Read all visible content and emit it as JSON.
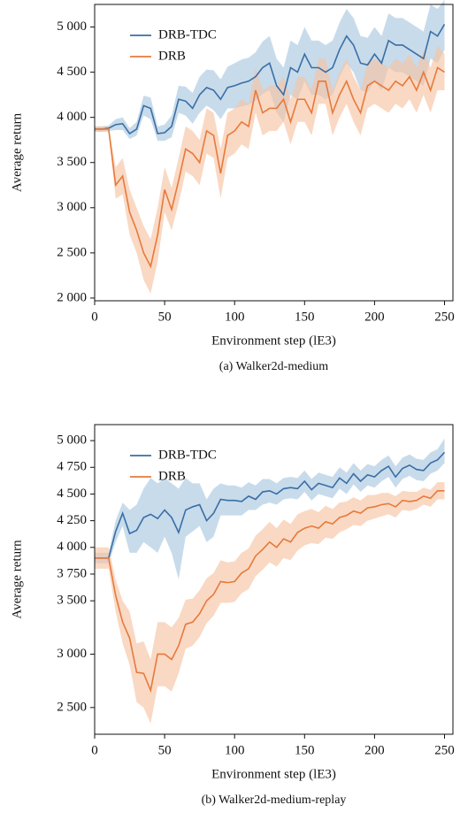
{
  "chart_data": [
    {
      "type": "line",
      "caption": "(a) Walker2d-medium",
      "xlabel": "Environment step (lE3)",
      "ylabel": "Average return",
      "legend": "upper left",
      "x": [
        0,
        5,
        10,
        15,
        20,
        25,
        30,
        35,
        40,
        45,
        50,
        55,
        60,
        65,
        70,
        75,
        80,
        85,
        90,
        95,
        100,
        105,
        110,
        115,
        120,
        125,
        130,
        135,
        140,
        145,
        150,
        155,
        160,
        165,
        170,
        175,
        180,
        185,
        190,
        195,
        200,
        205,
        210,
        215,
        220,
        225,
        230,
        235,
        240,
        245,
        250
      ],
      "xlim": [
        0,
        256
      ],
      "xticks": [
        0,
        50,
        100,
        150,
        200,
        250
      ],
      "ylim": [
        1970,
        5250
      ],
      "yticks": [
        {
          "value": 2000,
          "label": "2 000"
        },
        {
          "value": 2500,
          "label": "2 500"
        },
        {
          "value": 3000,
          "label": "3 000"
        },
        {
          "value": 3500,
          "label": "3 500"
        },
        {
          "value": 4000,
          "label": "4 000"
        },
        {
          "value": 4500,
          "label": "4 500"
        },
        {
          "value": 5000,
          "label": "5 000"
        }
      ],
      "series": [
        {
          "name": "DRB-TDC",
          "color": "#3a6ea5",
          "band_color": "#a9c8e0",
          "values": [
            3870,
            3870,
            3880,
            3920,
            3930,
            3820,
            3870,
            4130,
            4100,
            3820,
            3830,
            3900,
            4200,
            4180,
            4100,
            4250,
            4330,
            4300,
            4200,
            4330,
            4350,
            4380,
            4400,
            4450,
            4550,
            4600,
            4350,
            4250,
            4550,
            4500,
            4700,
            4550,
            4550,
            4500,
            4550,
            4750,
            4900,
            4800,
            4600,
            4580,
            4700,
            4600,
            4850,
            4800,
            4800,
            4750,
            4700,
            4650,
            4950,
            4900,
            5030
          ],
          "lower": [
            3840,
            3840,
            3850,
            3860,
            3860,
            3760,
            3800,
            4020,
            3980,
            3740,
            3740,
            3780,
            4050,
            4020,
            3930,
            4050,
            4130,
            4080,
            3980,
            4100,
            4100,
            4120,
            4140,
            4180,
            4260,
            4300,
            4050,
            3950,
            4250,
            4200,
            4400,
            4250,
            4250,
            4200,
            4250,
            4450,
            4600,
            4500,
            4300,
            4280,
            4400,
            4300,
            4550,
            4500,
            4500,
            4450,
            4400,
            4350,
            4650,
            4600,
            4750
          ],
          "upper": [
            3900,
            3900,
            3910,
            3980,
            4000,
            3880,
            3950,
            4240,
            4220,
            3900,
            3920,
            4020,
            4350,
            4340,
            4270,
            4450,
            4530,
            4520,
            4420,
            4560,
            4600,
            4640,
            4660,
            4720,
            4840,
            4900,
            4650,
            4550,
            4850,
            4800,
            5000,
            4850,
            4850,
            4800,
            4850,
            5050,
            5200,
            5100,
            4900,
            4880,
            5000,
            4900,
            5150,
            5100,
            5100,
            5050,
            5000,
            4950,
            5250,
            5200,
            5300
          ]
        },
        {
          "name": "DRB",
          "color": "#e8793b",
          "band_color": "#f6c4a4",
          "values": [
            3870,
            3870,
            3870,
            3250,
            3350,
            2950,
            2750,
            2500,
            2350,
            2700,
            3200,
            2980,
            3300,
            3650,
            3600,
            3500,
            3850,
            3800,
            3380,
            3800,
            3850,
            3950,
            3900,
            4300,
            4050,
            4100,
            4100,
            4200,
            3950,
            4200,
            4200,
            4050,
            4400,
            4400,
            4050,
            4250,
            4400,
            4200,
            4050,
            4350,
            4400,
            4350,
            4300,
            4400,
            4350,
            4450,
            4300,
            4500,
            4300,
            4550,
            4500
          ],
          "lower": [
            3840,
            3840,
            3840,
            3100,
            3150,
            2700,
            2500,
            2200,
            2050,
            2400,
            2950,
            2750,
            3050,
            3400,
            3350,
            3250,
            3600,
            3550,
            3100,
            3550,
            3600,
            3700,
            3650,
            4050,
            3800,
            3850,
            3850,
            3950,
            3700,
            3950,
            3950,
            3800,
            4150,
            4150,
            3800,
            4000,
            4150,
            3950,
            3800,
            4100,
            4150,
            4100,
            4050,
            4150,
            4100,
            4200,
            4050,
            4250,
            4050,
            4300,
            4300
          ],
          "upper": [
            3900,
            3900,
            3900,
            3450,
            3550,
            3200,
            3000,
            2800,
            2650,
            3000,
            3450,
            3220,
            3550,
            3900,
            3850,
            3750,
            4100,
            4050,
            3650,
            4050,
            4100,
            4200,
            4150,
            4550,
            4300,
            4350,
            4350,
            4450,
            4200,
            4450,
            4450,
            4300,
            4650,
            4650,
            4300,
            4500,
            4650,
            4450,
            4300,
            4600,
            4650,
            4600,
            4550,
            4650,
            4600,
            4700,
            4550,
            4750,
            4550,
            4800,
            4700
          ]
        }
      ]
    },
    {
      "type": "line",
      "caption": "(b) Walker2d-medium-replay",
      "xlabel": "Environment step (lE3)",
      "ylabel": "Average return",
      "legend": "upper left",
      "x": [
        0,
        5,
        10,
        15,
        20,
        25,
        30,
        35,
        40,
        45,
        50,
        55,
        60,
        65,
        70,
        75,
        80,
        85,
        90,
        95,
        100,
        105,
        110,
        115,
        120,
        125,
        130,
        135,
        140,
        145,
        150,
        155,
        160,
        165,
        170,
        175,
        180,
        185,
        190,
        195,
        200,
        205,
        210,
        215,
        220,
        225,
        230,
        235,
        240,
        245,
        250
      ],
      "xlim": [
        0,
        256
      ],
      "xticks": [
        0,
        50,
        100,
        150,
        200,
        250
      ],
      "ylim": [
        2250,
        5150
      ],
      "yticks": [
        {
          "value": 2500,
          "label": "2 500"
        },
        {
          "value": 3000,
          "label": "3 000"
        },
        {
          "value": 3500,
          "label": "3 500"
        },
        {
          "value": 3750,
          "label": "3 750"
        },
        {
          "value": 4000,
          "label": "4 000"
        },
        {
          "value": 4250,
          "label": "4 250"
        },
        {
          "value": 4500,
          "label": "4 500"
        },
        {
          "value": 4750,
          "label": "4 750"
        },
        {
          "value": 5000,
          "label": "5 000"
        }
      ],
      "series": [
        {
          "name": "DRB-TDC",
          "color": "#3a6ea5",
          "band_color": "#a9c8e0",
          "values": [
            3900,
            3900,
            3900,
            4150,
            4320,
            4130,
            4160,
            4280,
            4310,
            4270,
            4350,
            4280,
            4140,
            4350,
            4380,
            4400,
            4250,
            4320,
            4450,
            4440,
            4440,
            4430,
            4480,
            4450,
            4520,
            4530,
            4500,
            4550,
            4560,
            4550,
            4620,
            4540,
            4600,
            4580,
            4560,
            4650,
            4600,
            4690,
            4620,
            4680,
            4660,
            4720,
            4760,
            4660,
            4740,
            4770,
            4730,
            4720,
            4790,
            4820,
            4890
          ],
          "lower": [
            3850,
            3850,
            3850,
            4050,
            4200,
            3950,
            3950,
            4050,
            4000,
            3950,
            4100,
            3950,
            3700,
            4100,
            4150,
            4200,
            4050,
            4100,
            4300,
            4300,
            4300,
            4300,
            4350,
            4350,
            4400,
            4420,
            4400,
            4450,
            4460,
            4450,
            4520,
            4440,
            4500,
            4480,
            4460,
            4550,
            4500,
            4590,
            4520,
            4580,
            4560,
            4620,
            4660,
            4560,
            4640,
            4670,
            4630,
            4620,
            4690,
            4720,
            4790
          ],
          "upper": [
            3950,
            3950,
            3950,
            4250,
            4420,
            4350,
            4400,
            4550,
            4650,
            4600,
            4650,
            4600,
            4550,
            4650,
            4600,
            4600,
            4450,
            4550,
            4600,
            4580,
            4580,
            4560,
            4610,
            4580,
            4640,
            4640,
            4600,
            4650,
            4660,
            4650,
            4720,
            4640,
            4700,
            4680,
            4660,
            4750,
            4700,
            4790,
            4720,
            4780,
            4760,
            4820,
            4860,
            4760,
            4840,
            4870,
            4830,
            4820,
            4890,
            4920,
            5020
          ]
        },
        {
          "name": "DRB",
          "color": "#e8793b",
          "band_color": "#f6c4a4",
          "values": [
            3900,
            3900,
            3900,
            3550,
            3300,
            3150,
            2830,
            2820,
            2660,
            3000,
            3000,
            2950,
            3080,
            3280,
            3300,
            3380,
            3500,
            3560,
            3680,
            3670,
            3680,
            3760,
            3800,
            3920,
            3980,
            4050,
            4000,
            4080,
            4050,
            4140,
            4180,
            4200,
            4180,
            4240,
            4220,
            4280,
            4300,
            4340,
            4320,
            4370,
            4380,
            4400,
            4410,
            4380,
            4440,
            4430,
            4440,
            4480,
            4460,
            4530,
            4530
          ],
          "lower": [
            3800,
            3800,
            3800,
            3400,
            3100,
            2900,
            2550,
            2500,
            2350,
            2700,
            2700,
            2650,
            2820,
            3050,
            3080,
            3160,
            3290,
            3360,
            3480,
            3480,
            3490,
            3570,
            3610,
            3730,
            3790,
            3860,
            3820,
            3900,
            3880,
            3970,
            4020,
            4040,
            4030,
            4090,
            4080,
            4140,
            4170,
            4210,
            4200,
            4250,
            4270,
            4290,
            4310,
            4280,
            4350,
            4340,
            4360,
            4400,
            4380,
            4450,
            4450
          ],
          "upper": [
            4000,
            4000,
            4000,
            3700,
            3500,
            3400,
            3100,
            3120,
            2950,
            3300,
            3300,
            3250,
            3340,
            3510,
            3520,
            3600,
            3710,
            3760,
            3880,
            3860,
            3870,
            3950,
            3990,
            4110,
            4170,
            4240,
            4180,
            4260,
            4220,
            4310,
            4340,
            4360,
            4330,
            4390,
            4360,
            4420,
            4430,
            4470,
            4440,
            4490,
            4490,
            4510,
            4510,
            4480,
            4530,
            4520,
            4520,
            4560,
            4540,
            4610,
            4610
          ]
        }
      ]
    }
  ]
}
